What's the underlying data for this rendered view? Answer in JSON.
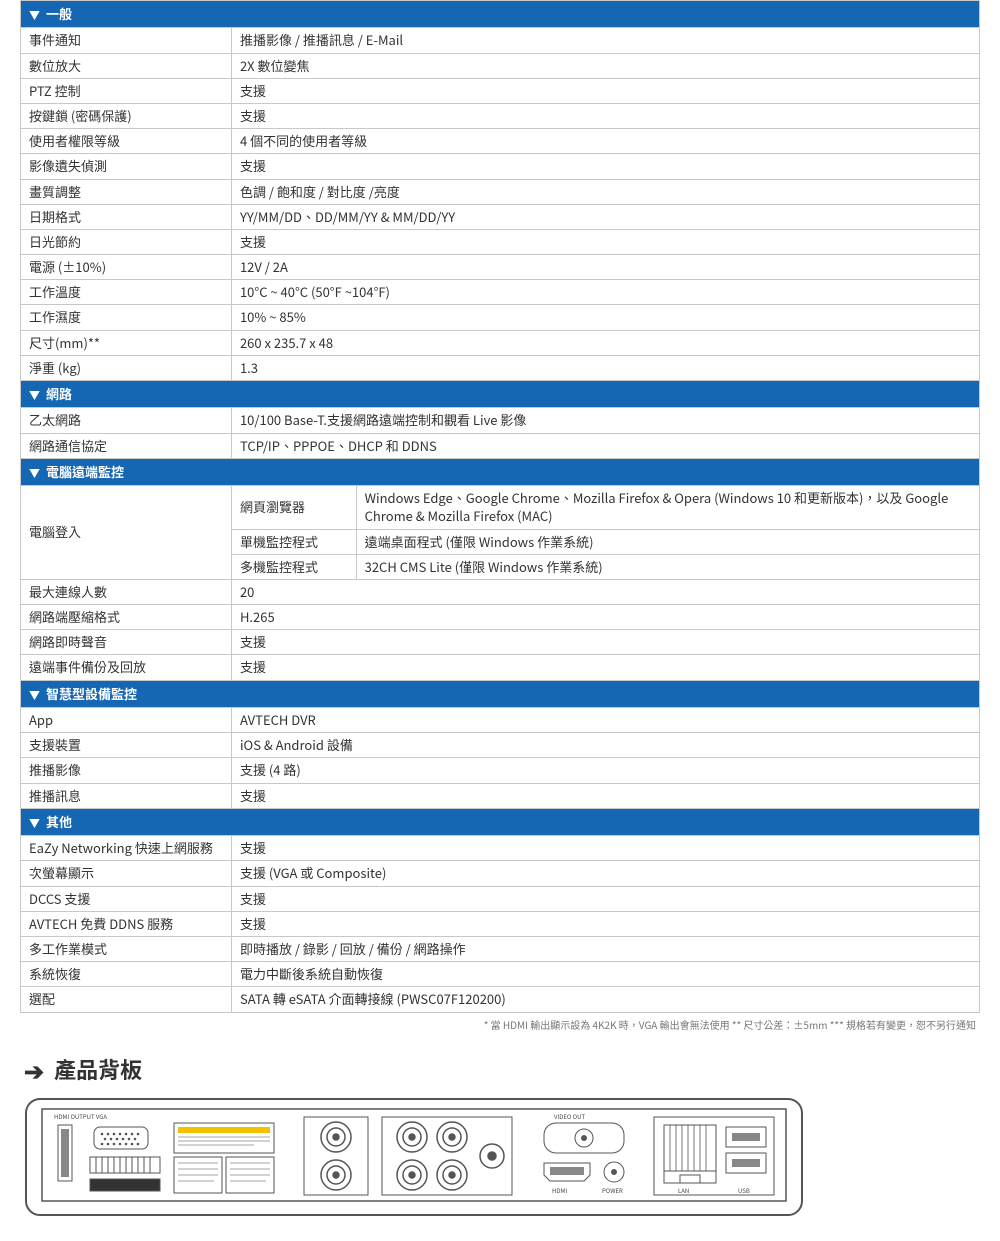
{
  "colors": {
    "header_bg": "#1566b3",
    "header_text": "#ffffff",
    "border": "#c8c8c8",
    "text": "#333333",
    "footnote": "#777777"
  },
  "sections": {
    "general": {
      "title": "一般",
      "rows": [
        [
          "事件通知",
          "推播影像  /  推播訊息  / E-Mail"
        ],
        [
          "數位放大",
          "2X  數位變焦"
        ],
        [
          "PTZ 控制",
          "支援"
        ],
        [
          "按鍵鎖  (密碼保護)",
          "支援"
        ],
        [
          "使用者權限等級",
          "4 個不同的使用者等級"
        ],
        [
          "影像遺失偵測",
          "支援"
        ],
        [
          "畫質調整",
          "色調  /  飽和度  /  對比度 /亮度"
        ],
        [
          "日期格式",
          "YY/MM/DD、DD/MM/YY & MM/DD/YY"
        ],
        [
          "日光節約",
          "支援"
        ],
        [
          "電源  (±10%)",
          "12V / 2A"
        ],
        [
          "工作溫度",
          "10°C ~ 40°C (50°F ~104°F)"
        ],
        [
          "工作濕度",
          "10% ~ 85%"
        ],
        [
          "尺寸(mm)**",
          "260 x 235.7 x 48"
        ],
        [
          "淨重  (kg)",
          "1.3"
        ]
      ]
    },
    "network": {
      "title": "網路",
      "rows": [
        [
          "乙太網路",
          "10/100 Base-T.支援網路遠端控制和觀看 Live 影像"
        ],
        [
          "網路通信協定",
          "TCP/IP、PPPOE、DHCP 和 DDNS"
        ]
      ]
    },
    "remote": {
      "title": "電腦遠端監控",
      "login_label": "電腦登入",
      "browser_label": "網頁瀏覽器",
      "browser_value": "Windows Edge、Google Chrome、Mozilla Firefox & Opera (Windows 10 和更新版本)，以及 Google Chrome & Mozilla Firefox (MAC)",
      "single_label": "單機監控程式",
      "single_value": "遠端桌面程式  (僅限 Windows 作業系統)",
      "multi_label": "多機監控程式",
      "multi_value": "32CH CMS Lite (僅限 Windows 作業系統)",
      "rows_after": [
        [
          "最大連線人數",
          "20"
        ],
        [
          "網路端壓縮格式",
          "H.265"
        ],
        [
          "網路即時聲音",
          "支援"
        ],
        [
          "遠端事件備份及回放",
          "支援"
        ]
      ]
    },
    "smart": {
      "title": "智慧型設備監控",
      "rows": [
        [
          "App",
          "AVTECH DVR"
        ],
        [
          "支援裝置",
          "iOS & Android 設備"
        ],
        [
          "推播影像",
          "支援  (4 路)"
        ],
        [
          "推播訊息",
          "支援"
        ]
      ]
    },
    "other": {
      "title": "其他",
      "rows": [
        [
          "EaZy Networking 快速上網服務",
          "支援"
        ],
        [
          "次螢幕顯示",
          "支援  (VGA 或 Composite)"
        ],
        [
          "DCCS  支援",
          "支援"
        ],
        [
          "AVTECH 免費 DDNS 服務",
          "支援"
        ],
        [
          "多工作業模式",
          "即時播放  /  錄影 /  回放  /  備份  /  網路操作"
        ],
        [
          "系統恢復",
          "電力中斷後系統自動恢復"
        ],
        [
          "選配",
          "SATA 轉 eSATA 介面轉接線  (PWSC07F120200)"
        ]
      ]
    }
  },
  "footnote": "*  當 HDMI 輸出顯示設為 4K2K 時，VGA 輸出會無法使用      **  尺寸公差：±5mm      ***  規格若有變更，恕不另行通知",
  "panel_title": "產品背板",
  "backpanel": {
    "chassis_stroke": "#555555",
    "chassis_fill": "#ffffff",
    "port_stroke": "#555555",
    "label_color": "#444444",
    "label_fontsize": 6,
    "labels": {
      "hdmi_vga": "HDMI OUTPUT   VGA",
      "video_out": "VIDEO OUT",
      "hdmi": "HDMI",
      "power": "POWER",
      "lan": "LAN",
      "usb": "USB"
    }
  }
}
